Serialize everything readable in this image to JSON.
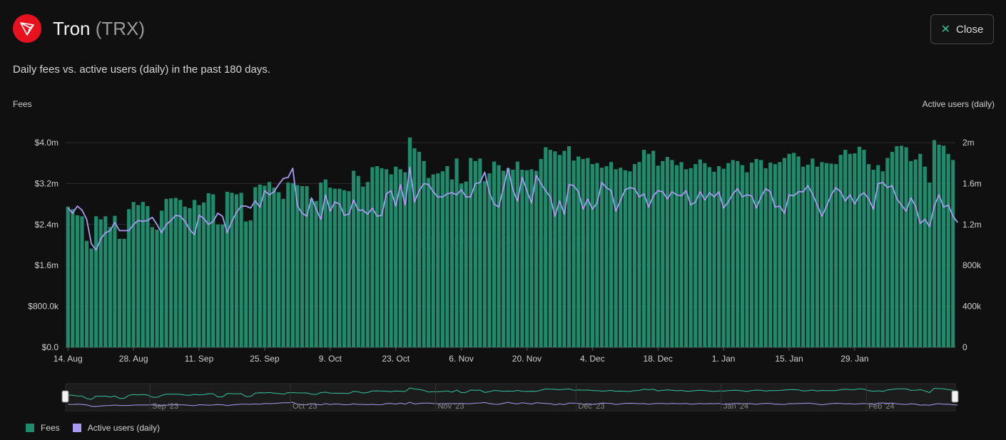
{
  "header": {
    "name": "Tron",
    "ticker": "(TRX)",
    "close_label": "Close",
    "logo_icon": "tron-logo-icon"
  },
  "subtitle": "Daily fees vs. active users (daily) in the past 180 days.",
  "colors": {
    "fees": "#1f8a6c",
    "users": "#a99af2",
    "accent": "#33c39b",
    "brand": "#e8121e"
  },
  "chart_data": {
    "type": "bar",
    "left_axis_title": "Fees",
    "right_axis_title": "Active users (daily)",
    "left_ticks": [
      "$0.0",
      "$800.0k",
      "$1.6m",
      "$2.4m",
      "$3.2m",
      "$4.0m"
    ],
    "right_ticks": [
      "0",
      "400k",
      "800k",
      "1.2m",
      "1.6m",
      "2m"
    ],
    "left_ylim": [
      0,
      4000000
    ],
    "right_ylim": [
      0,
      2000000
    ],
    "x_tick_labels": [
      "14. Aug",
      "28. Aug",
      "11. Sep",
      "25. Sep",
      "9. Oct",
      "23. Oct",
      "6. Nov",
      "20. Nov",
      "4. Dec",
      "18. Dec",
      "1. Jan",
      "15. Jan",
      "29. Jan"
    ],
    "x_tick_day_index": [
      0,
      14,
      28,
      42,
      56,
      70,
      84,
      98,
      112,
      126,
      140,
      154,
      168
    ],
    "grid": true,
    "legend_position": "bottom-left",
    "navigator_labels": [
      "Sep '23",
      "Oct '23",
      "Nov '23",
      "Dec '23",
      "Jan '24",
      "Feb '24"
    ],
    "navigator_label_day_index": [
      18,
      48,
      79,
      109,
      140,
      171
    ],
    "series": [
      {
        "name": "Fees",
        "axis": "left",
        "type": "bar",
        "values": [
          2750000,
          2700000,
          2580000,
          2560000,
          2080000,
          1930000,
          2560000,
          2500000,
          2560000,
          2350000,
          2570000,
          2120000,
          2120000,
          2700000,
          2840000,
          2780000,
          2840000,
          2760000,
          2350000,
          2300000,
          2670000,
          2900000,
          2910000,
          2920000,
          2880000,
          2750000,
          2720000,
          2880000,
          2780000,
          2830000,
          3010000,
          2990000,
          2400000,
          2400000,
          3040000,
          3020000,
          2990000,
          3020000,
          2460000,
          2480000,
          3130000,
          3180000,
          3160000,
          3230000,
          3120000,
          3030000,
          2900000,
          3220000,
          3210000,
          3170000,
          3150000,
          3150000,
          2900000,
          2860000,
          3220000,
          3280000,
          3120000,
          3100000,
          3100000,
          3070000,
          3050000,
          3450000,
          3350000,
          3140000,
          3230000,
          3520000,
          3540000,
          3500000,
          3480000,
          3380000,
          3530000,
          3480000,
          3420000,
          4100000,
          3890000,
          3820000,
          3640000,
          3310000,
          3380000,
          3400000,
          3440000,
          3540000,
          3280000,
          3690000,
          3200000,
          3240000,
          3700000,
          3640000,
          3690000,
          3250000,
          3400000,
          3630000,
          3560000,
          3450000,
          3500000,
          3470000,
          3630000,
          3470000,
          3460000,
          3480000,
          3450000,
          3680000,
          3910000,
          3860000,
          3830000,
          3760000,
          3840000,
          3930000,
          3650000,
          3730000,
          3680000,
          3700000,
          3580000,
          3600000,
          3510000,
          3540000,
          3620000,
          3480000,
          3510000,
          3460000,
          3440000,
          3580000,
          3620000,
          3860000,
          3780000,
          3840000,
          3550000,
          3640000,
          3720000,
          3660000,
          3560000,
          3620000,
          3480000,
          3500000,
          3580000,
          3670000,
          3600000,
          3520000,
          3430000,
          3540000,
          3490000,
          3600000,
          3660000,
          3640000,
          3560000,
          3420000,
          3610000,
          3680000,
          3660000,
          3500000,
          3610000,
          3580000,
          3620000,
          3700000,
          3780000,
          3800000,
          3730000,
          3530000,
          3570000,
          3690000,
          3530000,
          3620000,
          3600000,
          3590000,
          3580000,
          3760000,
          3860000,
          3780000,
          3790000,
          3920000,
          3860000,
          3580000,
          3470000,
          3560000,
          3440000,
          3700000,
          3820000,
          3930000,
          3940000,
          3910000,
          3640000,
          3670000,
          3780000,
          3530000,
          3220000,
          4050000,
          3960000,
          3940000,
          3780000,
          3660000
        ]
      },
      {
        "name": "Active users (daily)",
        "axis": "right",
        "type": "line",
        "values": [
          1360000,
          1310000,
          1380000,
          1340000,
          1250000,
          1010000,
          950000,
          1060000,
          1120000,
          1140000,
          1220000,
          1140000,
          1140000,
          1140000,
          1200000,
          1240000,
          1230000,
          1240000,
          1270000,
          1200000,
          1120000,
          1200000,
          1240000,
          1290000,
          1280000,
          1230000,
          1150000,
          1100000,
          1290000,
          1260000,
          1200000,
          1230000,
          1310000,
          1280000,
          1120000,
          1230000,
          1320000,
          1380000,
          1380000,
          1360000,
          1430000,
          1370000,
          1530000,
          1490000,
          1520000,
          1590000,
          1650000,
          1660000,
          1750000,
          1380000,
          1310000,
          1280000,
          1460000,
          1350000,
          1250000,
          1490000,
          1330000,
          1420000,
          1400000,
          1290000,
          1300000,
          1440000,
          1340000,
          1340000,
          1300000,
          1360000,
          1280000,
          1290000,
          1500000,
          1530000,
          1380000,
          1590000,
          1390000,
          1760000,
          1420000,
          1530000,
          1600000,
          1590000,
          1520000,
          1470000,
          1470000,
          1500000,
          1510000,
          1490000,
          1540000,
          1470000,
          1470000,
          1600000,
          1610000,
          1710000,
          1510000,
          1400000,
          1370000,
          1560000,
          1750000,
          1540000,
          1430000,
          1660000,
          1530000,
          1410000,
          1680000,
          1600000,
          1530000,
          1470000,
          1280000,
          1430000,
          1300000,
          1590000,
          1580000,
          1520000,
          1350000,
          1450000,
          1350000,
          1410000,
          1610000,
          1560000,
          1530000,
          1330000,
          1440000,
          1540000,
          1560000,
          1550000,
          1470000,
          1500000,
          1370000,
          1480000,
          1530000,
          1520000,
          1450000,
          1520000,
          1490000,
          1480000,
          1530000,
          1390000,
          1420000,
          1520000,
          1440000,
          1510000,
          1470000,
          1520000,
          1360000,
          1420000,
          1500000,
          1550000,
          1470000,
          1490000,
          1480000,
          1360000,
          1470000,
          1550000,
          1520000,
          1370000,
          1380000,
          1310000,
          1490000,
          1480000,
          1520000,
          1520000,
          1580000,
          1500000,
          1390000,
          1280000,
          1380000,
          1490000,
          1560000,
          1520000,
          1430000,
          1490000,
          1400000,
          1480000,
          1510000,
          1450000,
          1350000,
          1600000,
          1610000,
          1560000,
          1580000,
          1450000,
          1390000,
          1330000,
          1460000,
          1380000,
          1210000,
          1250000,
          1180000,
          1380000,
          1490000,
          1370000,
          1390000,
          1280000,
          1220000
        ]
      }
    ]
  }
}
